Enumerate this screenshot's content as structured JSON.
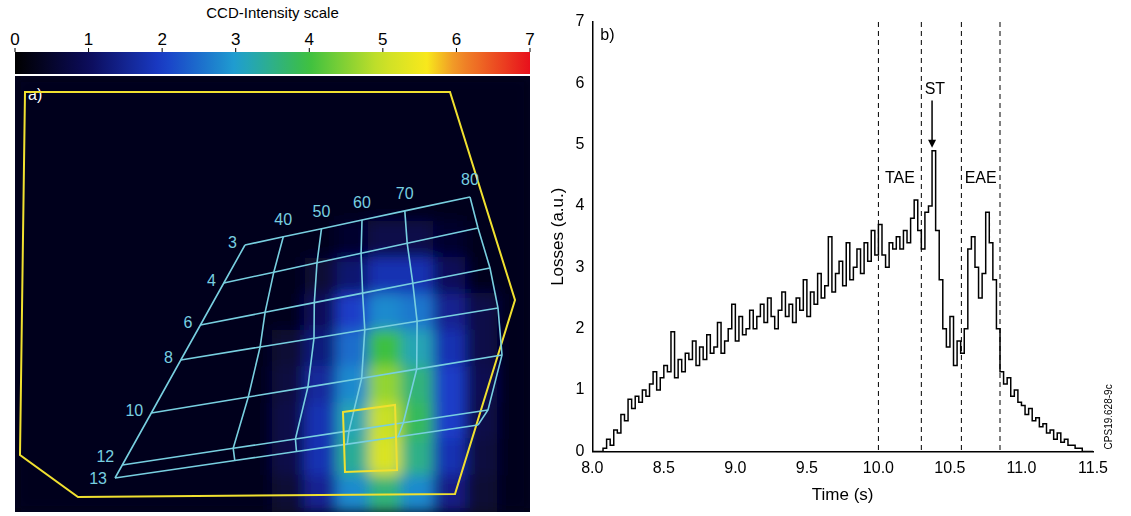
{
  "chart_data": [
    {
      "type": "image",
      "panel_label": "a)",
      "title": "CCD-Intensity scale",
      "colorbar": {
        "range": [
          0,
          7
        ],
        "ticks": [
          0,
          1,
          2,
          3,
          4,
          5,
          6,
          7
        ]
      },
      "pitch_angle_labels": [
        40,
        50,
        60,
        70,
        80
      ],
      "gyroradius_labels": [
        3,
        4,
        6,
        8,
        10,
        12,
        13
      ],
      "cells": [
        [
          0.3,
          0.3,
          0.3,
          0.3,
          0.3,
          0.3,
          0.3,
          0.3,
          0.3,
          0.3,
          0.3,
          0.3,
          0.3,
          0.3,
          0.3,
          0.3
        ],
        [
          0.3,
          0.3,
          0.3,
          0.3,
          0.3,
          0.3,
          0.3,
          0.3,
          0.3,
          0.3,
          0.3,
          0.3,
          0.3,
          0.3,
          0.3,
          0.3
        ],
        [
          0.3,
          0.3,
          0.3,
          0.3,
          0.3,
          0.3,
          0.3,
          0.3,
          0.3,
          0.3,
          0.3,
          0.3,
          0.3,
          0.3,
          0.3,
          0.3
        ],
        [
          0.3,
          0.3,
          0.3,
          0.3,
          0.3,
          0.3,
          0.3,
          0.3,
          0.3,
          0.3,
          0.3,
          0.3,
          0.3,
          0.3,
          0.3,
          0.3
        ],
        [
          0.3,
          0.3,
          0.3,
          0.3,
          0.3,
          0.3,
          0.3,
          0.3,
          0.3,
          0.3,
          0.5,
          0.8,
          0.8,
          0.5,
          0.3,
          0.3
        ],
        [
          0.3,
          0.3,
          0.3,
          0.3,
          0.3,
          0.3,
          0.3,
          0.3,
          0.3,
          0.6,
          1.2,
          1.8,
          1.8,
          1.0,
          0.3,
          0.3
        ],
        [
          0.3,
          0.3,
          0.3,
          0.3,
          0.3,
          0.3,
          0.3,
          0.3,
          0.3,
          1.0,
          2.0,
          2.8,
          2.6,
          1.5,
          0.8,
          0.3
        ],
        [
          0.3,
          0.3,
          0.3,
          0.3,
          0.3,
          0.3,
          0.3,
          0.3,
          0.6,
          1.3,
          2.5,
          4.0,
          3.2,
          1.8,
          0.8,
          0.3
        ],
        [
          0.3,
          0.3,
          0.3,
          0.3,
          0.3,
          0.3,
          0.3,
          0.3,
          0.7,
          1.6,
          2.8,
          4.6,
          3.6,
          2.0,
          0.9,
          0.3
        ],
        [
          0.3,
          0.3,
          0.3,
          0.3,
          0.3,
          0.3,
          0.3,
          0.3,
          0.8,
          1.8,
          3.2,
          5.0,
          3.8,
          2.0,
          0.8,
          0.3
        ],
        [
          0.3,
          0.3,
          0.3,
          0.3,
          0.3,
          0.3,
          0.3,
          0.3,
          0.8,
          1.8,
          3.4,
          5.2,
          3.5,
          1.8,
          0.7,
          0.3
        ],
        [
          0.3,
          0.3,
          0.3,
          0.3,
          0.3,
          0.3,
          0.3,
          0.3,
          0.6,
          1.5,
          2.8,
          3.6,
          2.8,
          1.4,
          0.6,
          0.3
        ]
      ]
    },
    {
      "type": "line",
      "panel_label": "b)",
      "x_label": "Time (s)",
      "y_label": "Losses (a.u.)",
      "xlim": [
        8.0,
        11.5
      ],
      "ylim": [
        0,
        7
      ],
      "xticks": [
        {
          "value": 8,
          "label": "8.0"
        },
        {
          "value": 8.5,
          "label": "8.5"
        },
        {
          "value": 9,
          "label": "9.0"
        },
        {
          "value": 9.5,
          "label": "9.5"
        },
        {
          "value": 10,
          "label": "10.0"
        },
        {
          "value": 10.5,
          "label": "10.5"
        },
        {
          "value": 11,
          "label": "11.0"
        },
        {
          "value": 11.5,
          "label": "11.5"
        }
      ],
      "yticks": [
        0,
        1,
        2,
        3,
        4,
        5,
        6,
        7
      ],
      "grid": false,
      "line_style": "steps",
      "color": "#000000",
      "x": [
        8.0,
        8.025,
        8.05,
        8.075,
        8.1,
        8.125,
        8.15,
        8.175,
        8.2,
        8.225,
        8.25,
        8.275,
        8.3,
        8.325,
        8.35,
        8.375,
        8.4,
        8.425,
        8.45,
        8.475,
        8.5,
        8.525,
        8.55,
        8.575,
        8.6,
        8.625,
        8.65,
        8.675,
        8.7,
        8.725,
        8.75,
        8.775,
        8.8,
        8.825,
        8.85,
        8.875,
        8.9,
        8.925,
        8.95,
        8.975,
        9.0,
        9.025,
        9.05,
        9.075,
        9.1,
        9.125,
        9.15,
        9.175,
        9.2,
        9.225,
        9.25,
        9.275,
        9.3,
        9.325,
        9.35,
        9.375,
        9.4,
        9.425,
        9.45,
        9.475,
        9.5,
        9.525,
        9.55,
        9.575,
        9.6,
        9.625,
        9.65,
        9.675,
        9.7,
        9.725,
        9.75,
        9.775,
        9.8,
        9.825,
        9.85,
        9.875,
        9.9,
        9.925,
        9.95,
        9.975,
        10.0,
        10.025,
        10.05,
        10.075,
        10.1,
        10.125,
        10.15,
        10.175,
        10.2,
        10.225,
        10.25,
        10.275,
        10.3,
        10.325,
        10.35,
        10.375,
        10.4,
        10.425,
        10.45,
        10.475,
        10.5,
        10.525,
        10.55,
        10.575,
        10.6,
        10.625,
        10.65,
        10.675,
        10.7,
        10.725,
        10.75,
        10.775,
        10.8,
        10.825,
        10.85,
        10.875,
        10.9,
        10.925,
        10.95,
        10.975,
        11.0,
        11.025,
        11.05,
        11.075,
        11.1,
        11.125,
        11.15,
        11.175,
        11.2,
        11.225,
        11.25,
        11.275,
        11.3,
        11.325,
        11.35,
        11.375,
        11.4,
        11.425,
        11.45,
        11.475,
        11.5
      ],
      "values": [
        0,
        0,
        0,
        0.05,
        0.2,
        0.1,
        0.35,
        0.3,
        0.6,
        0.5,
        0.85,
        0.7,
        0.9,
        0.8,
        1.0,
        0.9,
        1.1,
        1.3,
        1.0,
        1.2,
        1.4,
        1.3,
        1.95,
        1.2,
        1.5,
        1.3,
        1.6,
        1.5,
        1.8,
        1.4,
        1.7,
        1.5,
        1.9,
        1.6,
        1.7,
        2.1,
        1.6,
        1.8,
        2.0,
        2.4,
        1.8,
        2.2,
        1.9,
        2.0,
        2.3,
        2.0,
        2.2,
        2.4,
        2.1,
        2.5,
        2.2,
        2.0,
        2.3,
        2.6,
        2.2,
        2.4,
        2.1,
        2.5,
        2.3,
        2.8,
        2.2,
        2.6,
        2.4,
        2.9,
        2.5,
        2.7,
        3.5,
        2.6,
        2.9,
        3.1,
        2.7,
        3.4,
        2.8,
        3.0,
        3.3,
        2.9,
        3.4,
        3.1,
        3.6,
        3.2,
        3.7,
        3.2,
        3.0,
        3.4,
        3.3,
        3.5,
        3.3,
        3.6,
        3.4,
        3.8,
        4.1,
        3.6,
        3.3,
        3.9,
        4.0,
        4.9,
        3.6,
        2.8,
        2.0,
        1.7,
        2.2,
        1.4,
        1.8,
        1.6,
        2.0,
        3.3,
        3.5,
        3.0,
        2.5,
        2.9,
        3.9,
        3.4,
        2.8,
        2.0,
        1.3,
        1.1,
        1.2,
        0.9,
        1.0,
        0.8,
        0.75,
        0.6,
        0.7,
        0.5,
        0.55,
        0.4,
        0.45,
        0.3,
        0.35,
        0.2,
        0.3,
        0.15,
        0.2,
        0.1,
        0.1,
        0.05,
        0.05,
        0,
        0,
        0,
        0
      ],
      "vlines": [
        10.0,
        10.3,
        10.58,
        10.85
      ],
      "annotations": [
        {
          "text": "TAE",
          "x": 10.15,
          "y": 4.45
        },
        {
          "text": "ST",
          "x": 10.395,
          "y": 5.9,
          "arrow_to": [
            10.375,
            4.95
          ]
        },
        {
          "text": "EAE",
          "x": 10.715,
          "y": 4.45
        }
      ],
      "footnote": "CPS19.628-9c"
    }
  ]
}
